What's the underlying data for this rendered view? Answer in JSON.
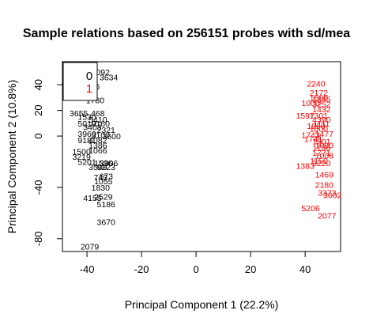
{
  "chart_data": {
    "type": "scatter",
    "title": "Sample relations based on 256151 probes with sd/mea",
    "xlabel": "Principal Component 1 (22.2%)",
    "ylabel": "Principal Component 2 (10.8%)",
    "xlim": [
      -49,
      53
    ],
    "ylim": [
      -90,
      58
    ],
    "xticks": [
      "-40",
      "-20",
      "0",
      "20",
      "40"
    ],
    "yticks": [
      "40",
      "20",
      "0",
      "-40",
      "-80"
    ],
    "ytick_values": [
      40,
      20,
      0,
      -40,
      -80
    ],
    "xtick_values": [
      -40,
      -20,
      0,
      20,
      40
    ],
    "legend": {
      "position": "top-left",
      "items": [
        {
          "label": "0",
          "color": "#000000"
        },
        {
          "label": "1",
          "color": "#ff0000"
        }
      ]
    },
    "series": [
      {
        "name": "0",
        "color": "#000000",
        "points": [
          {
            "x": -35,
            "y": 50,
            "label": "1092"
          },
          {
            "x": -32,
            "y": 46,
            "label": "3634"
          },
          {
            "x": -37,
            "y": 39,
            "label": "46"
          },
          {
            "x": -38,
            "y": 36,
            "label": "94"
          },
          {
            "x": -37,
            "y": 28,
            "label": "1780"
          },
          {
            "x": -36,
            "y": 18,
            "label": "468"
          },
          {
            "x": -43,
            "y": 18,
            "label": "3655"
          },
          {
            "x": -40,
            "y": 15,
            "label": "1530"
          },
          {
            "x": -36,
            "y": 13,
            "label": "5410"
          },
          {
            "x": -40,
            "y": 10,
            "label": "5010"
          },
          {
            "x": -35,
            "y": 10,
            "label": "9160"
          },
          {
            "x": -38,
            "y": 7,
            "label": "3403"
          },
          {
            "x": -33,
            "y": 5,
            "label": "2321"
          },
          {
            "x": -40,
            "y": 2,
            "label": "3960"
          },
          {
            "x": -35,
            "y": 1,
            "label": "3100"
          },
          {
            "x": -31,
            "y": 0,
            "label": "3600"
          },
          {
            "x": -40,
            "y": -3,
            "label": "9181"
          },
          {
            "x": -36,
            "y": -3,
            "label": "4082"
          },
          {
            "x": -36,
            "y": -7,
            "label": "1386"
          },
          {
            "x": -36,
            "y": -11,
            "label": "1066"
          },
          {
            "x": -42,
            "y": -12,
            "label": "1500"
          },
          {
            "x": -42,
            "y": -16,
            "label": "3219"
          },
          {
            "x": -40,
            "y": -20,
            "label": "5201"
          },
          {
            "x": -34,
            "y": -21,
            "label": "1536"
          },
          {
            "x": -32,
            "y": -21,
            "label": "3906"
          },
          {
            "x": -36,
            "y": -24,
            "label": "3509"
          },
          {
            "x": -33,
            "y": -24,
            "label": "9223"
          },
          {
            "x": -33,
            "y": -31,
            "label": "673"
          },
          {
            "x": -35,
            "y": -32,
            "label": "743"
          },
          {
            "x": -34,
            "y": -35,
            "label": "1055"
          },
          {
            "x": -35,
            "y": -40,
            "label": "1830"
          },
          {
            "x": -34,
            "y": -47,
            "label": "2529"
          },
          {
            "x": -38,
            "y": -48,
            "label": "4155"
          },
          {
            "x": -33,
            "y": -53,
            "label": "5186"
          },
          {
            "x": -33,
            "y": -67,
            "label": "3670"
          },
          {
            "x": -39,
            "y": -86,
            "label": "2079"
          }
        ]
      },
      {
        "name": "1",
        "color": "#ff0000",
        "points": [
          {
            "x": 44,
            "y": 41,
            "label": "2240"
          },
          {
            "x": 45,
            "y": 34,
            "label": "2172"
          },
          {
            "x": 45,
            "y": 30,
            "label": "1600"
          },
          {
            "x": 46,
            "y": 29,
            "label": "1845"
          },
          {
            "x": 42,
            "y": 26,
            "label": "1000"
          },
          {
            "x": 46,
            "y": 25,
            "label": "3252"
          },
          {
            "x": 46,
            "y": 21,
            "label": "1432"
          },
          {
            "x": 40,
            "y": 16,
            "label": "1597"
          },
          {
            "x": 45,
            "y": 16,
            "label": "1301"
          },
          {
            "x": 46,
            "y": 13,
            "label": "4390"
          },
          {
            "x": 46,
            "y": 10,
            "label": "1111"
          },
          {
            "x": 44,
            "y": 8,
            "label": "1960"
          },
          {
            "x": 45,
            "y": 6,
            "label": "1800"
          },
          {
            "x": 47,
            "y": 2,
            "label": "1477"
          },
          {
            "x": 42,
            "y": 1,
            "label": "1743"
          },
          {
            "x": 43,
            "y": -2,
            "label": "1741"
          },
          {
            "x": 46,
            "y": -4,
            "label": "1901"
          },
          {
            "x": 47,
            "y": -7,
            "label": "1090"
          },
          {
            "x": 46,
            "y": -9,
            "label": "1136"
          },
          {
            "x": 46,
            "y": -13,
            "label": "1771"
          },
          {
            "x": 47,
            "y": -15,
            "label": "1008"
          },
          {
            "x": 45,
            "y": -19,
            "label": "1150"
          },
          {
            "x": 46,
            "y": -21,
            "label": "3220"
          },
          {
            "x": 40,
            "y": -23,
            "label": "1383"
          },
          {
            "x": 47,
            "y": -30,
            "label": "1469"
          },
          {
            "x": 47,
            "y": -38,
            "label": "2180"
          },
          {
            "x": 48,
            "y": -44,
            "label": "3373"
          },
          {
            "x": 50,
            "y": -46,
            "label": "3602"
          },
          {
            "x": 42,
            "y": -56,
            "label": "5206"
          },
          {
            "x": 48,
            "y": -62,
            "label": "2077"
          }
        ]
      }
    ]
  }
}
